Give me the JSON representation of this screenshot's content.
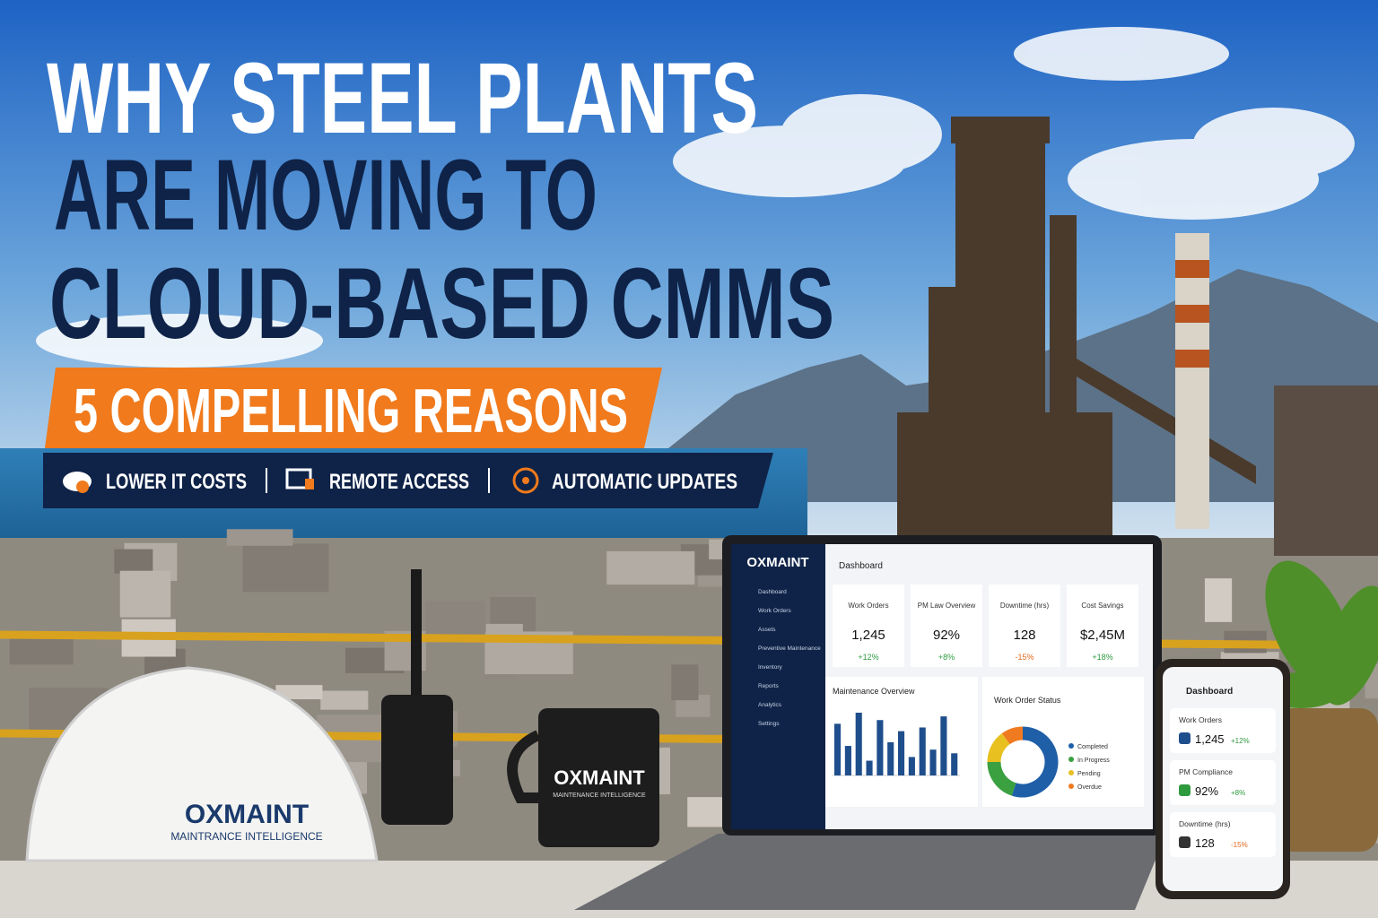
{
  "headline": {
    "line1": "WHY STEEL PLANTS",
    "line2": "ARE MOVING TO",
    "line3": "CLOUD-BASED CMMS"
  },
  "badge": "5 COMPELLING REASONS",
  "features": [
    "LOWER IT COSTS",
    "REMOTE ACCESS",
    "AUTOMATIC UPDATES"
  ],
  "laptop": {
    "logo": "OXMAINT",
    "nav": [
      "Dashboard",
      "Work Orders",
      "Assets",
      "Preventive Maintenance",
      "Inventory",
      "Reports",
      "Analytics",
      "Settings"
    ],
    "header": "Dashboard",
    "cards": [
      {
        "label": "Work Orders",
        "value": "1,245",
        "change": "+12%"
      },
      {
        "label": "PM Law Overview",
        "value": "92%",
        "change": "+8%"
      },
      {
        "label": "Downtime (hrs)",
        "value": "128",
        "change": "-15%"
      },
      {
        "label": "Cost Savings",
        "value": "$2,45M",
        "change": "+18%"
      }
    ],
    "maintenance_chart": {
      "title": "Maintenance Overview",
      "values": [
        70,
        40,
        85,
        20,
        75,
        45,
        60,
        25,
        65,
        35,
        80,
        30
      ]
    },
    "status_chart": {
      "title": "Work Order Status",
      "series": [
        {
          "name": "Completed",
          "color": "#1f5fa8",
          "value": 55
        },
        {
          "name": "In Progress",
          "color": "#3aa040",
          "value": 20
        },
        {
          "name": "Pending",
          "color": "#e8c020",
          "value": 15
        },
        {
          "name": "Overdue",
          "color": "#f07a20",
          "value": 10
        }
      ]
    }
  },
  "phone": {
    "title": "Dashboard",
    "cards": [
      {
        "label": "Work Orders",
        "value": "1,245",
        "change": "+12%"
      },
      {
        "label": "PM Compliance",
        "value": "92%",
        "change": "+8%"
      },
      {
        "label": "Downtime (hrs)",
        "value": "128",
        "change": "-15%"
      }
    ]
  },
  "helmet": {
    "brand": "OXMAINT",
    "tagline": "MAINTRANCE INTELLIGENCE"
  },
  "mug": {
    "brand": "OXMAINT",
    "tagline": "MAINTENANCE INTELLIGENCE"
  }
}
